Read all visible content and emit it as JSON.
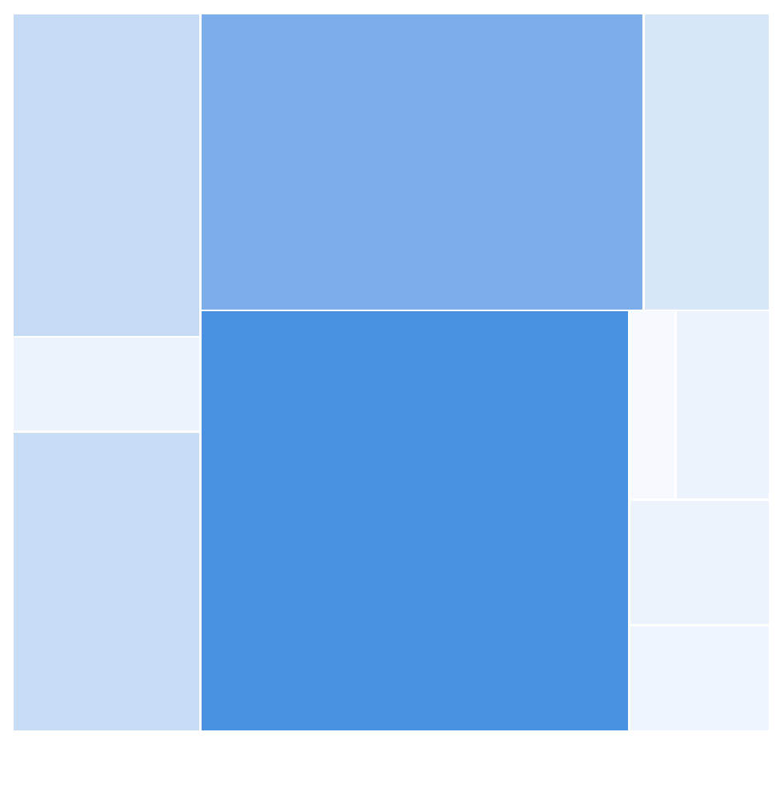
{
  "chart_data": {
    "type": "treemap",
    "title": "",
    "tiles": [
      {
        "id": "a",
        "value": 94,
        "color": "#c5daf4"
      },
      {
        "id": "b",
        "value": 28,
        "color": "#ecf3fd"
      },
      {
        "id": "c",
        "value": 87,
        "color": "#c7dcf5"
      },
      {
        "id": "d",
        "value": 205,
        "color": "#7daeea"
      },
      {
        "id": "e",
        "value": 58,
        "color": "#d8e7f8"
      },
      {
        "id": "f",
        "value": 280,
        "color": "#4a91e1"
      },
      {
        "id": "g",
        "value": 14,
        "color": "#f6f9fe"
      },
      {
        "id": "h",
        "value": 28,
        "color": "#ecf3fd"
      },
      {
        "id": "i",
        "value": 28,
        "color": "#ecf3fd"
      },
      {
        "id": "j",
        "value": 23,
        "color": "#eef5fe"
      }
    ]
  }
}
